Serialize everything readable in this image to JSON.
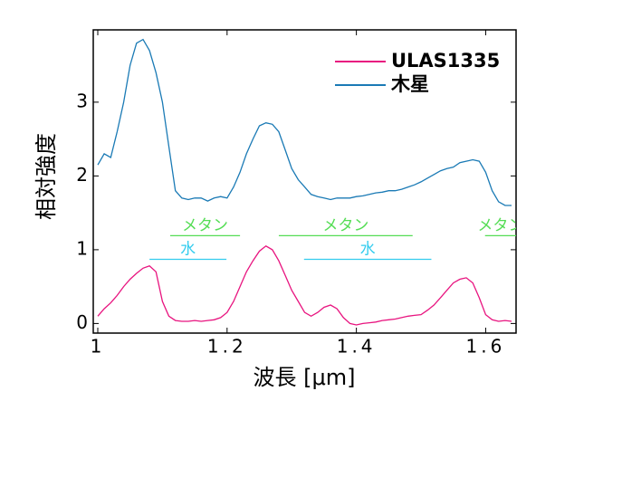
{
  "chart_data": {
    "type": "line",
    "xlabel": "波長 [μm]",
    "ylabel": "相対強度",
    "x": [
      1.0,
      1.01,
      1.02,
      1.03,
      1.04,
      1.05,
      1.06,
      1.07,
      1.08,
      1.09,
      1.1,
      1.11,
      1.12,
      1.13,
      1.14,
      1.15,
      1.16,
      1.17,
      1.18,
      1.19,
      1.2,
      1.21,
      1.22,
      1.23,
      1.24,
      1.25,
      1.26,
      1.27,
      1.28,
      1.29,
      1.3,
      1.31,
      1.32,
      1.33,
      1.34,
      1.35,
      1.36,
      1.37,
      1.38,
      1.39,
      1.4,
      1.41,
      1.42,
      1.43,
      1.44,
      1.45,
      1.46,
      1.47,
      1.48,
      1.49,
      1.5,
      1.51,
      1.52,
      1.53,
      1.54,
      1.55,
      1.56,
      1.57,
      1.58,
      1.59,
      1.6,
      1.61,
      1.62,
      1.63,
      1.64
    ],
    "series": [
      {
        "name": "ULAS1335",
        "color": "#e8147f",
        "values": [
          0.1,
          0.2,
          0.28,
          0.38,
          0.5,
          0.6,
          0.68,
          0.75,
          0.78,
          0.7,
          0.3,
          0.1,
          0.04,
          0.03,
          0.03,
          0.04,
          0.03,
          0.04,
          0.05,
          0.08,
          0.15,
          0.3,
          0.5,
          0.7,
          0.85,
          0.98,
          1.05,
          1.0,
          0.85,
          0.65,
          0.45,
          0.3,
          0.15,
          0.1,
          0.15,
          0.22,
          0.25,
          0.2,
          0.08,
          0.0,
          -0.02,
          0.0,
          0.01,
          0.02,
          0.04,
          0.05,
          0.06,
          0.08,
          0.1,
          0.11,
          0.12,
          0.18,
          0.25,
          0.35,
          0.45,
          0.55,
          0.6,
          0.62,
          0.55,
          0.35,
          0.12,
          0.05,
          0.03,
          0.04,
          0.03
        ]
      },
      {
        "name": "木星",
        "color": "#1a7ab5",
        "values": [
          2.15,
          2.3,
          2.25,
          2.6,
          3.0,
          3.5,
          3.8,
          3.85,
          3.7,
          3.4,
          3.0,
          2.4,
          1.8,
          1.7,
          1.68,
          1.7,
          1.7,
          1.66,
          1.7,
          1.72,
          1.7,
          1.85,
          2.05,
          2.3,
          2.5,
          2.68,
          2.72,
          2.7,
          2.6,
          2.35,
          2.1,
          1.95,
          1.85,
          1.75,
          1.72,
          1.7,
          1.68,
          1.7,
          1.7,
          1.7,
          1.72,
          1.73,
          1.75,
          1.77,
          1.78,
          1.8,
          1.8,
          1.82,
          1.85,
          1.88,
          1.92,
          1.97,
          2.02,
          2.07,
          2.1,
          2.12,
          2.18,
          2.2,
          2.22,
          2.2,
          2.05,
          1.8,
          1.65,
          1.6,
          1.6
        ]
      }
    ],
    "xlim": [
      0.993,
      1.647
    ],
    "ylim": [
      -0.13,
      3.98
    ],
    "xticks": [
      1,
      1.2,
      1.4,
      1.6
    ],
    "yticks": [
      0,
      1,
      2,
      3
    ],
    "legend": "upper right",
    "annotations": [
      {
        "text": "メタン",
        "x": [
          1.112,
          1.22
        ],
        "y": 1.19,
        "color": "#55dd55"
      },
      {
        "text": "メタン",
        "x": [
          1.28,
          1.487
        ],
        "y": 1.19,
        "color": "#55dd55"
      },
      {
        "text": "メタン",
        "x": [
          1.599,
          1.647
        ],
        "y": 1.19,
        "color": "#55dd55"
      },
      {
        "text": "水",
        "x": [
          1.08,
          1.199
        ],
        "y": 0.87,
        "color": "#33ccee"
      },
      {
        "text": "水",
        "x": [
          1.319,
          1.516
        ],
        "y": 0.87,
        "color": "#33ccee"
      }
    ]
  }
}
